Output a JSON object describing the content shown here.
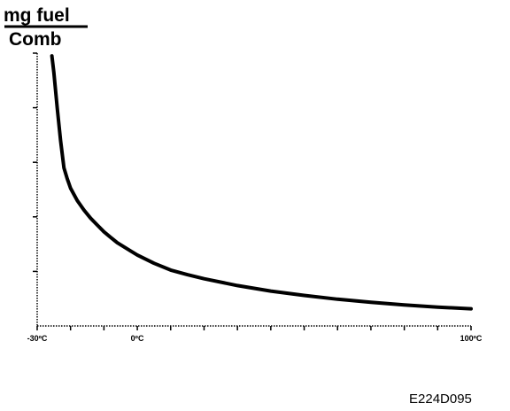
{
  "chart_data": {
    "type": "line",
    "ylabel_numerator": "mg fuel",
    "ylabel_denominator": "Comb",
    "xlabel": "",
    "xlim": [
      -30,
      100
    ],
    "ylim": [
      0,
      100
    ],
    "x_tick_labels": [
      {
        "value": -30,
        "label": "-30ºC"
      },
      {
        "value": 0,
        "label": "0ºC"
      },
      {
        "value": 100,
        "label": "100ºC"
      }
    ],
    "x_minor_ticks": [
      -30,
      -20,
      -10,
      0,
      10,
      20,
      30,
      40,
      50,
      60,
      70,
      80,
      90,
      100
    ],
    "y_ticks": [
      20,
      40,
      60,
      80,
      100
    ],
    "series": [
      {
        "color": "#000000",
        "x": [
          -25.6,
          -25,
          -24,
          -23,
          -22,
          -21,
          -20,
          -18,
          -16,
          -14,
          -12,
          -10,
          -8,
          -6,
          -4,
          -2,
          0,
          5,
          10,
          15,
          20,
          30,
          40,
          50,
          60,
          70,
          80,
          90,
          100
        ],
        "y": [
          99,
          93,
          80,
          68,
          58,
          54,
          50.5,
          46,
          42.5,
          39.5,
          37,
          34.5,
          32.5,
          30.5,
          29,
          27.5,
          26,
          23,
          20.5,
          18.8,
          17.3,
          14.8,
          12.8,
          11.2,
          9.8,
          8.7,
          7.7,
          6.9,
          6.3
        ]
      }
    ]
  },
  "figure_code": "E224D095"
}
